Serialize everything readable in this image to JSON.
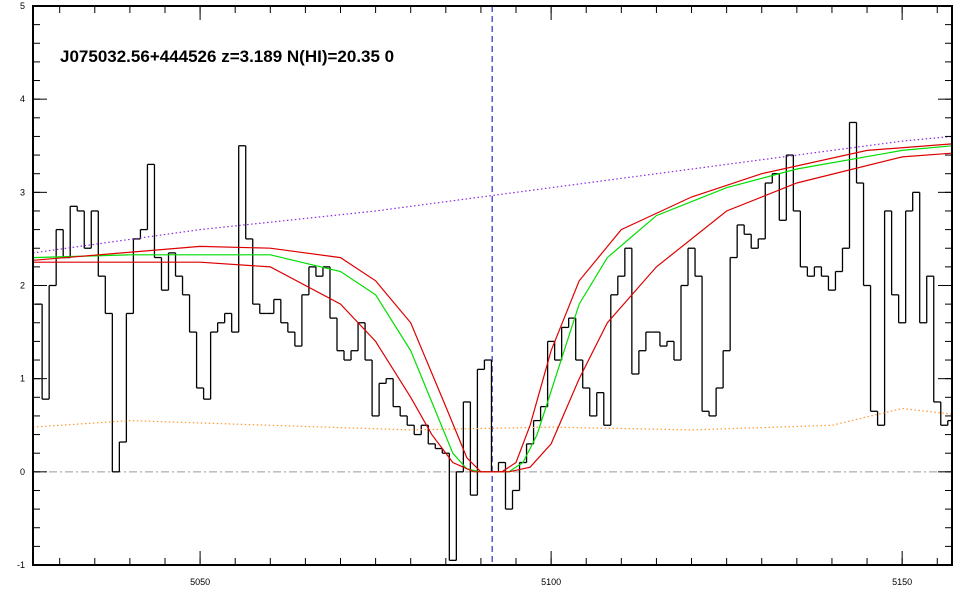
{
  "chart_data": {
    "type": "spectrum",
    "title": "J075032.56+444526 z=3.189 N(HI)=20.35 0",
    "xlim": [
      5026.2,
      5157.1
    ],
    "ylim": [
      -1,
      5
    ],
    "xticks": [
      5050,
      5100,
      5150
    ],
    "yticks": [
      -1,
      0,
      1,
      2,
      3,
      4,
      5
    ],
    "vline": {
      "x": 5091.6,
      "color": "#0000cc"
    },
    "hline": {
      "y": 0,
      "color": "#999999"
    },
    "series": [
      {
        "style": "step",
        "color": "#000000",
        "x": [
          5027,
          5028,
          5029,
          5030,
          5031,
          5032,
          5033,
          5034,
          5035,
          5036,
          5037,
          5038,
          5039,
          5040,
          5041,
          5042,
          5043,
          5044,
          5045,
          5046,
          5047,
          5048,
          5049,
          5050,
          5051,
          5052,
          5053,
          5054,
          5055,
          5056,
          5057,
          5058,
          5059,
          5060,
          5061,
          5062,
          5063,
          5064,
          5065,
          5066,
          5067,
          5068,
          5069,
          5070,
          5071,
          5072,
          5073,
          5074,
          5075,
          5076,
          5077,
          5078,
          5079,
          5080,
          5081,
          5082,
          5083,
          5084,
          5085,
          5086,
          5087,
          5088,
          5089,
          5090,
          5091,
          5092,
          5093,
          5094,
          5095,
          5096,
          5097,
          5098,
          5099,
          5100,
          5101,
          5102,
          5103,
          5104,
          5105,
          5106,
          5107,
          5108,
          5109,
          5110,
          5111,
          5112,
          5113,
          5114,
          5115,
          5116,
          5117,
          5118,
          5119,
          5120,
          5121,
          5122,
          5123,
          5124,
          5125,
          5126,
          5127,
          5128,
          5129,
          5130,
          5131,
          5132,
          5133,
          5134,
          5135,
          5136,
          5137,
          5138,
          5139,
          5140,
          5141,
          5142,
          5143,
          5144,
          5145,
          5146,
          5147,
          5148,
          5149,
          5150,
          5151,
          5152,
          5153,
          5154,
          5155,
          5156,
          5157
        ],
        "values": [
          1.8,
          0.78,
          2.0,
          2.6,
          2.3,
          2.85,
          2.8,
          2.4,
          2.8,
          2.1,
          1.7,
          0.0,
          0.32,
          1.7,
          2.5,
          2.6,
          3.3,
          2.3,
          1.95,
          2.35,
          2.1,
          1.9,
          1.5,
          0.9,
          0.78,
          1.5,
          1.6,
          1.7,
          1.5,
          3.5,
          2.5,
          1.8,
          1.7,
          1.7,
          1.85,
          1.6,
          1.5,
          1.35,
          1.9,
          2.2,
          2.1,
          2.2,
          1.65,
          1.3,
          1.2,
          1.3,
          1.6,
          1.2,
          0.6,
          0.95,
          1.0,
          0.7,
          0.6,
          0.5,
          0.4,
          0.5,
          0.3,
          0.25,
          0.2,
          -0.95,
          0.0,
          0.75,
          -0.25,
          1.1,
          1.2,
          0.0,
          0.1,
          -0.4,
          -0.2,
          0.1,
          0.3,
          0.55,
          0.7,
          1.4,
          1.2,
          1.55,
          1.65,
          1.2,
          0.9,
          0.6,
          0.85,
          0.5,
          1.9,
          2.1,
          2.4,
          1.05,
          1.3,
          1.5,
          1.5,
          1.35,
          1.4,
          1.2,
          2.0,
          2.4,
          2.1,
          0.65,
          0.6,
          0.9,
          1.3,
          2.3,
          2.65,
          2.55,
          2.4,
          2.5,
          3.1,
          3.2,
          2.7,
          3.4,
          2.8,
          2.2,
          2.1,
          2.2,
          2.1,
          1.95,
          2.15,
          2.4,
          3.75,
          3.1,
          2.0,
          0.65,
          0.5,
          2.8,
          1.9,
          1.6,
          2.8,
          3.0,
          1.6,
          2.1,
          0.75,
          0.5,
          0.55
        ]
      },
      {
        "style": "dotted",
        "color": "#8a2be2",
        "x": [
          5026.2,
          5050,
          5075,
          5100,
          5125,
          5150,
          5157.1
        ],
        "values": [
          2.35,
          2.6,
          2.8,
          3.05,
          3.3,
          3.55,
          3.6
        ]
      },
      {
        "style": "dotted",
        "color": "#ff9933",
        "x": [
          5026.2,
          5040,
          5060,
          5080,
          5100,
          5120,
          5140,
          5150,
          5157.1
        ],
        "values": [
          0.48,
          0.55,
          0.5,
          0.45,
          0.48,
          0.45,
          0.5,
          0.68,
          0.62
        ]
      },
      {
        "style": "solid",
        "color": "#00dd00",
        "x": [
          5026.2,
          5040,
          5060,
          5070,
          5075,
          5080,
          5083,
          5086,
          5088,
          5090,
          5094,
          5096,
          5098,
          5101,
          5104,
          5108,
          5115,
          5125,
          5135,
          5150,
          5157.1
        ],
        "values": [
          2.3,
          2.33,
          2.33,
          2.15,
          1.9,
          1.3,
          0.75,
          0.2,
          0.03,
          0,
          0,
          0.1,
          0.4,
          1.1,
          1.8,
          2.3,
          2.75,
          3.05,
          3.25,
          3.45,
          3.5
        ]
      },
      {
        "style": "solid",
        "color": "#dd0000",
        "x": [
          5026.2,
          5050,
          5060,
          5070,
          5075,
          5080,
          5085,
          5088,
          5090,
          5093,
          5095,
          5097,
          5100,
          5104,
          5110,
          5120,
          5130,
          5145,
          5157.1
        ],
        "values": [
          2.27,
          2.42,
          2.4,
          2.3,
          2.05,
          1.6,
          0.7,
          0.15,
          0,
          0,
          0.1,
          0.5,
          1.3,
          2.05,
          2.6,
          2.95,
          3.2,
          3.45,
          3.52
        ]
      },
      {
        "style": "solid",
        "color": "#dd0000",
        "x": [
          5026.2,
          5050,
          5060,
          5070,
          5075,
          5080,
          5083,
          5086,
          5089,
          5094,
          5097,
          5100,
          5104,
          5108,
          5115,
          5125,
          5135,
          5150,
          5157.1
        ],
        "values": [
          2.25,
          2.25,
          2.2,
          1.8,
          1.4,
          0.8,
          0.4,
          0.1,
          0,
          0,
          0.05,
          0.3,
          1.0,
          1.6,
          2.2,
          2.8,
          3.1,
          3.38,
          3.42
        ]
      }
    ]
  }
}
